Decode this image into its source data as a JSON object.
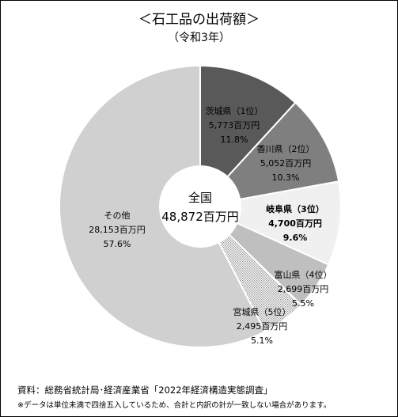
{
  "chart_data": {
    "type": "pie",
    "title": "＜石工品の出荷額＞",
    "subtitle": "（令和3年）",
    "center_label": "全国",
    "center_value": "48,872百万円",
    "slices": [
      {
        "label": "茨城県（1位）",
        "amount": "5,773百万円",
        "percent_text": "11.8%",
        "value": 5773,
        "color": "#595959",
        "bold": false
      },
      {
        "label": "香川県（2位）",
        "amount": "5,052百万円",
        "percent_text": "10.3%",
        "value": 5052,
        "color": "#7f7f7f",
        "bold": false
      },
      {
        "label": "岐阜県（3位）",
        "amount": "4,700百万円",
        "percent_text": "9.6%",
        "value": 4700,
        "color": "#f0f0f0",
        "bold": true
      },
      {
        "label": "富山県（4位）",
        "amount": "2,699百万円",
        "percent_text": "5.5%",
        "value": 2699,
        "color": "#bfbfbf",
        "bold": false
      },
      {
        "label": "宮城県（5位）",
        "amount": "2,495百万円",
        "percent_text": "5.1%",
        "value": 2495,
        "color": "#dcdcdc",
        "pattern": "dots",
        "bold": false
      },
      {
        "label": "その他",
        "amount": "28,153百万円",
        "percent_text": "57.6%",
        "value": 28153,
        "color": "#d0d0d0",
        "bold": false
      }
    ]
  },
  "source": "資料：総務省統計局･経済産業省「2022年経済構造実態調査」",
  "note": "※データは単位未満で四捨五入しているため、合計と内訳の計が一致しない場合があります。"
}
